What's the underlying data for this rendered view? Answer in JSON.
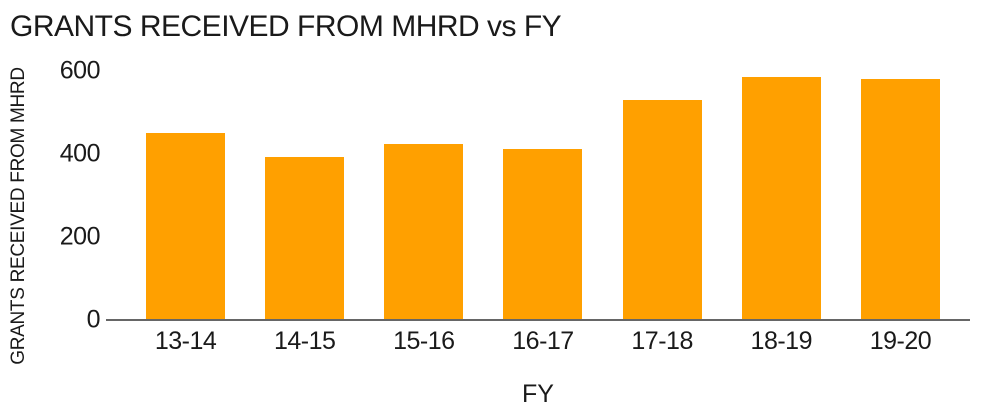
{
  "chart": {
    "title": "GRANTS RECEIVED FROM MHRD vs FY",
    "y_axis_title": "GRANTS RECEIVED FROM MHRD",
    "x_axis_title": "FY",
    "colors": {
      "bar": "#FFA000",
      "axis_line": "#666666",
      "text": "#1a1a1a",
      "background": "#ffffff"
    }
  },
  "chart_data": {
    "type": "bar",
    "title": "GRANTS RECEIVED FROM MHRD vs FY",
    "xlabel": "FY",
    "ylabel": "GRANTS RECEIVED FROM MHRD",
    "categories": [
      "13-14",
      "14-15",
      "15-16",
      "16-17",
      "17-18",
      "18-19",
      "19-20"
    ],
    "values": [
      450,
      393,
      425,
      411,
      530,
      585,
      580
    ],
    "ylim": [
      0,
      600
    ],
    "y_ticks": [
      600,
      400,
      200,
      0
    ],
    "grid": false,
    "legend": false,
    "bar_color": "#FFA000"
  }
}
